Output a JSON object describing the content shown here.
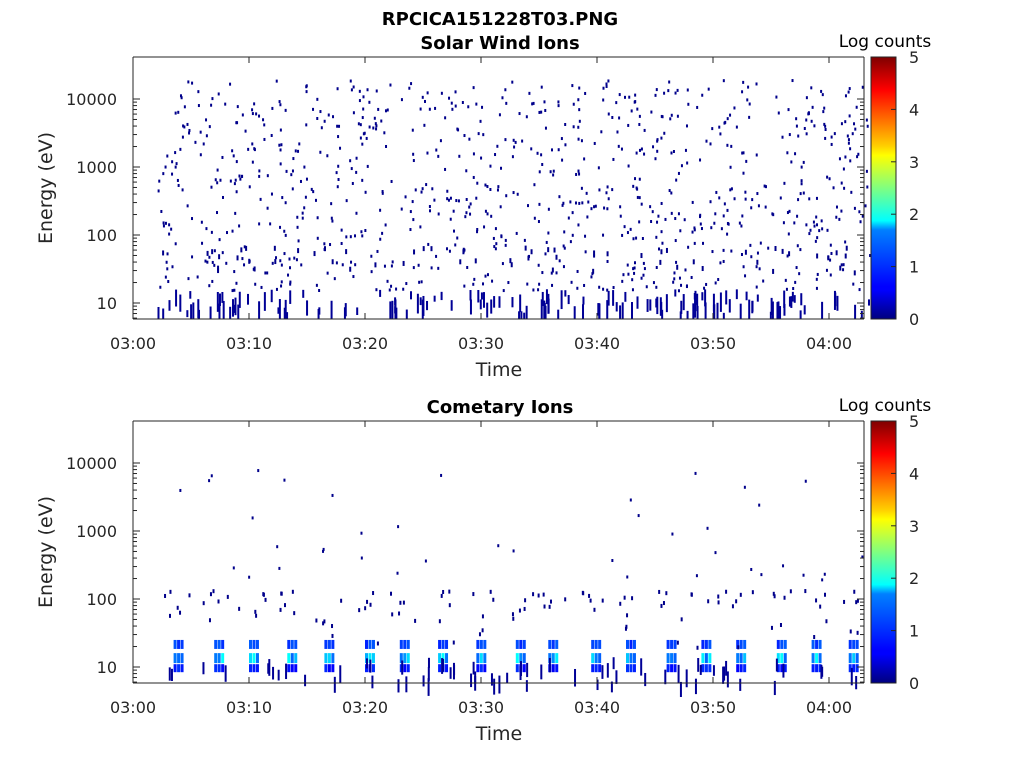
{
  "figure": {
    "filename": "RPCICA151228T03.PNG"
  },
  "chart_data": [
    {
      "type": "heatmap",
      "title": "Solar Wind Ions",
      "xlabel": "Time",
      "ylabel": "Energy (eV)",
      "y_scale": "log",
      "ylim": [
        6,
        45000
      ],
      "xlim": [
        "03:00",
        "04:04"
      ],
      "x_ticks": [
        "03:00",
        "03:10",
        "03:20",
        "03:30",
        "03:40",
        "03:50",
        "04:00"
      ],
      "y_ticks": [
        "10",
        "100",
        "1000",
        "10000"
      ],
      "colorbar": {
        "label": "Log counts",
        "range": [
          0,
          5
        ],
        "ticks": [
          "0",
          "1",
          "2",
          "3",
          "4",
          "5"
        ],
        "colormap": "jet"
      },
      "description_level": "sparse scatter of low counts (mostly ~0 log counts) across 10-20000 eV, denser streaks below 30 eV"
    },
    {
      "type": "heatmap",
      "title": "Cometary Ions",
      "xlabel": "Time",
      "ylabel": "Energy (eV)",
      "y_scale": "log",
      "ylim": [
        6,
        45000
      ],
      "xlim": [
        "03:00",
        "04:04"
      ],
      "x_ticks": [
        "03:00",
        "03:10",
        "03:20",
        "03:30",
        "03:40",
        "03:50",
        "04:00"
      ],
      "y_ticks": [
        "10",
        "100",
        "1000",
        "10000"
      ],
      "colorbar": {
        "label": "Log counts",
        "range": [
          0,
          5
        ],
        "ticks": [
          "0",
          "1",
          "2",
          "3",
          "4",
          "5"
        ],
        "colormap": "jet"
      },
      "description_level": "periodic bursts below ~100 eV reaching ~1.5-2 log counts near 15-25 eV, sparse points above"
    }
  ]
}
